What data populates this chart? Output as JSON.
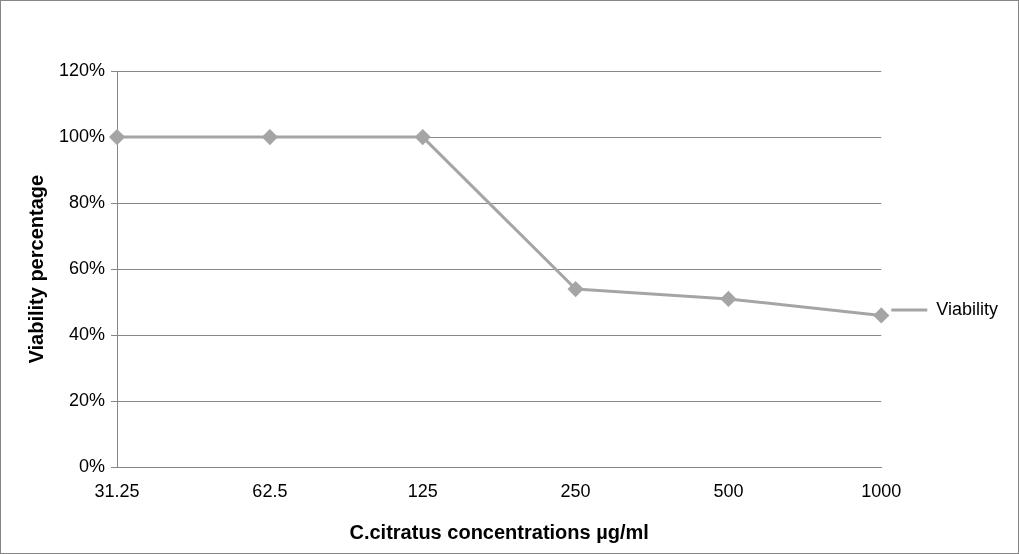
{
  "chart_data": {
    "type": "line",
    "xlabel": "C.citratus concentrations µg/ml",
    "ylabel": "Viability percentage",
    "categories": [
      "31.25",
      "62.5",
      "125",
      "250",
      "500",
      "1000"
    ],
    "series": [
      {
        "name": "Viability",
        "color": "#a5a5a5",
        "values": [
          100,
          100,
          100,
          54,
          51,
          46
        ]
      }
    ],
    "ylim": [
      0,
      120
    ],
    "yticks": [
      {
        "value": 0,
        "label": "0%"
      },
      {
        "value": 20,
        "label": "20%"
      },
      {
        "value": 40,
        "label": "40%"
      },
      {
        "value": 60,
        "label": "60%"
      },
      {
        "value": 80,
        "label": "80%"
      },
      {
        "value": 100,
        "label": "100%"
      },
      {
        "value": 120,
        "label": "120%"
      }
    ],
    "grid": "y",
    "legend": "right",
    "marker": "diamond",
    "line_style": "solid"
  }
}
